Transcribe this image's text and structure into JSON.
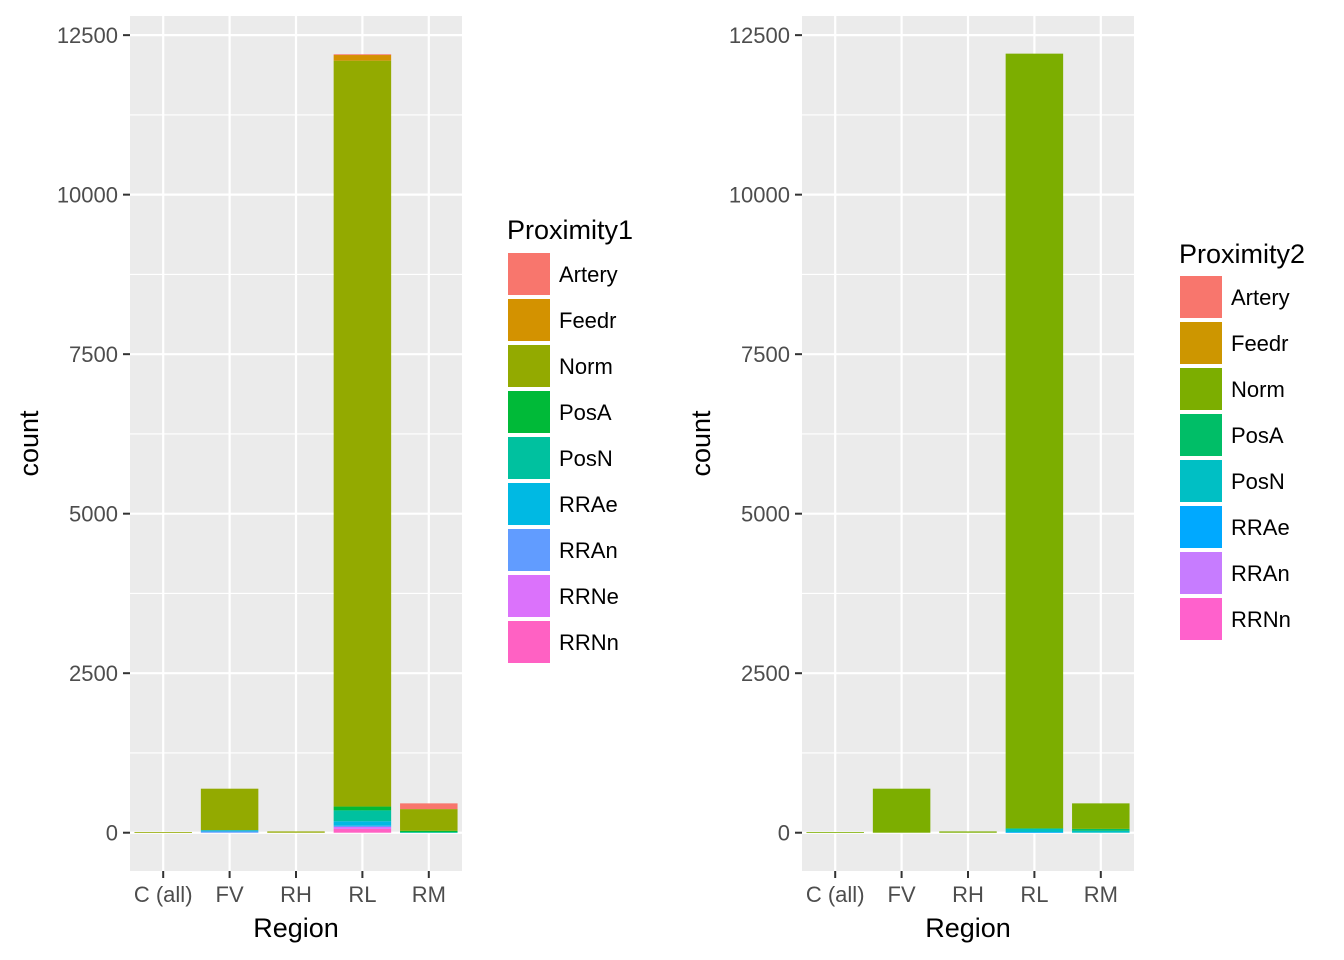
{
  "chart_data": [
    {
      "type": "bar",
      "stacked": true,
      "xlabel": "Region",
      "ylabel": "count",
      "categories": [
        "C (all)",
        "FV",
        "RH",
        "RL",
        "RM"
      ],
      "ylim": [
        -600,
        12800
      ],
      "yticks": [
        0,
        2500,
        5000,
        7500,
        10000,
        12500
      ],
      "ytick_labels": [
        "0",
        "2500",
        "5000",
        "7500",
        "10000",
        "12500"
      ],
      "grid": true,
      "legend": {
        "title": "Proximity1",
        "placement": "right",
        "items": [
          {
            "label": "Artery",
            "color": "#F8766D"
          },
          {
            "label": "Feedr",
            "color": "#D39200"
          },
          {
            "label": "Norm",
            "color": "#93AA00"
          },
          {
            "label": "PosA",
            "color": "#00BA38"
          },
          {
            "label": "PosN",
            "color": "#00C19F"
          },
          {
            "label": "RRAe",
            "color": "#00B9E3"
          },
          {
            "label": "RRAn",
            "color": "#619CFF"
          },
          {
            "label": "RRNe",
            "color": "#DB72FB"
          },
          {
            "label": "RRNn",
            "color": "#FF61C3"
          }
        ]
      },
      "series": [
        {
          "name": "Artery",
          "values": [
            0,
            0,
            0,
            10,
            90
          ]
        },
        {
          "name": "Feedr",
          "values": [
            0,
            0,
            0,
            90,
            0
          ]
        },
        {
          "name": "Norm",
          "values": [
            10,
            650,
            20,
            11690,
            340
          ]
        },
        {
          "name": "PosA",
          "values": [
            0,
            0,
            0,
            60,
            20
          ]
        },
        {
          "name": "PosN",
          "values": [
            0,
            0,
            0,
            170,
            10
          ]
        },
        {
          "name": "RRAe",
          "values": [
            0,
            20,
            0,
            70,
            0
          ]
        },
        {
          "name": "RRAn",
          "values": [
            0,
            20,
            0,
            20,
            0
          ]
        },
        {
          "name": "RRNe",
          "values": [
            0,
            0,
            0,
            30,
            0
          ]
        },
        {
          "name": "RRNn",
          "values": [
            0,
            0,
            0,
            60,
            0
          ]
        }
      ]
    },
    {
      "type": "bar",
      "stacked": true,
      "xlabel": "Region",
      "ylabel": "count",
      "categories": [
        "C (all)",
        "FV",
        "RH",
        "RL",
        "RM"
      ],
      "ylim": [
        -600,
        12800
      ],
      "yticks": [
        0,
        2500,
        5000,
        7500,
        10000,
        12500
      ],
      "ytick_labels": [
        "0",
        "2500",
        "5000",
        "7500",
        "10000",
        "12500"
      ],
      "grid": true,
      "legend": {
        "title": "Proximity2",
        "placement": "right",
        "items": [
          {
            "label": "Artery",
            "color": "#F8766D"
          },
          {
            "label": "Feedr",
            "color": "#CD9600"
          },
          {
            "label": "Norm",
            "color": "#7CAE00"
          },
          {
            "label": "PosA",
            "color": "#00BE67"
          },
          {
            "label": "PosN",
            "color": "#00BFC4"
          },
          {
            "label": "RRAe",
            "color": "#00A9FF"
          },
          {
            "label": "RRAn",
            "color": "#C77CFF"
          },
          {
            "label": "RRNn",
            "color": "#FF61CC"
          }
        ]
      },
      "series": [
        {
          "name": "Artery",
          "values": [
            0,
            0,
            0,
            0,
            0
          ]
        },
        {
          "name": "Feedr",
          "values": [
            0,
            0,
            0,
            0,
            0
          ]
        },
        {
          "name": "Norm",
          "values": [
            10,
            690,
            20,
            12140,
            400
          ]
        },
        {
          "name": "PosA",
          "values": [
            0,
            0,
            0,
            10,
            30
          ]
        },
        {
          "name": "PosN",
          "values": [
            0,
            0,
            0,
            50,
            30
          ]
        },
        {
          "name": "RRAe",
          "values": [
            0,
            0,
            0,
            10,
            0
          ]
        },
        {
          "name": "RRAn",
          "values": [
            0,
            0,
            0,
            0,
            0
          ]
        },
        {
          "name": "RRNn",
          "values": [
            0,
            0,
            0,
            0,
            0
          ]
        }
      ]
    }
  ]
}
